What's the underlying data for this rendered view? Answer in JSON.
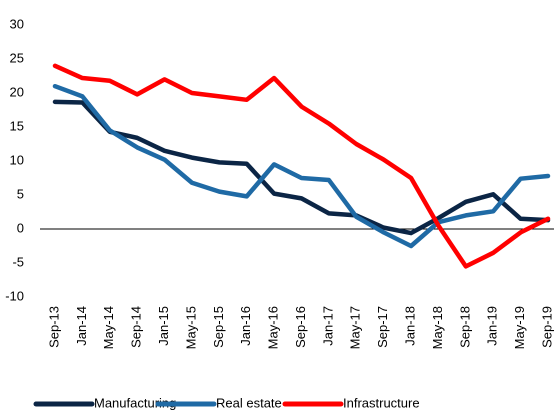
{
  "chart_data": {
    "type": "line",
    "categories": [
      "Sep-13",
      "Jan-14",
      "May-14",
      "Sep-14",
      "Jan-15",
      "May-15",
      "Sep-15",
      "Jan-16",
      "May-16",
      "Sep-16",
      "Jan-17",
      "May-17",
      "Sep-17",
      "Jan-18",
      "May-18",
      "Sep-18",
      "Jan-19",
      "May-19",
      "Sep-19"
    ],
    "series": [
      {
        "name": "Manufacturing",
        "color": "#0b2545",
        "values": [
          18.7,
          18.6,
          14.3,
          13.4,
          11.5,
          10.5,
          9.8,
          9.6,
          5.2,
          4.5,
          2.3,
          2.0,
          0.2,
          -0.6,
          1.6,
          4.0,
          5.1,
          1.5,
          1.3
        ]
      },
      {
        "name": "Real estate",
        "color": "#1f6aa5",
        "values": [
          21.0,
          19.5,
          14.5,
          12.0,
          10.2,
          6.8,
          5.5,
          4.8,
          9.5,
          7.5,
          7.2,
          1.8,
          -0.5,
          -2.5,
          1.0,
          2.0,
          2.6,
          7.4,
          7.8
        ]
      },
      {
        "name": "Infrastructure",
        "color": "#ff0000",
        "values": [
          24.0,
          22.2,
          21.8,
          19.8,
          22.0,
          20.0,
          19.5,
          19.0,
          22.2,
          18.0,
          15.5,
          12.5,
          10.2,
          7.5,
          0.5,
          -5.5,
          -3.5,
          -0.5,
          1.5
        ]
      }
    ],
    "ylim": [
      -10,
      30
    ],
    "yticks": [
      -10,
      -5,
      0,
      5,
      10,
      15,
      20,
      25,
      30
    ],
    "grid": false,
    "legend": "bottom"
  }
}
